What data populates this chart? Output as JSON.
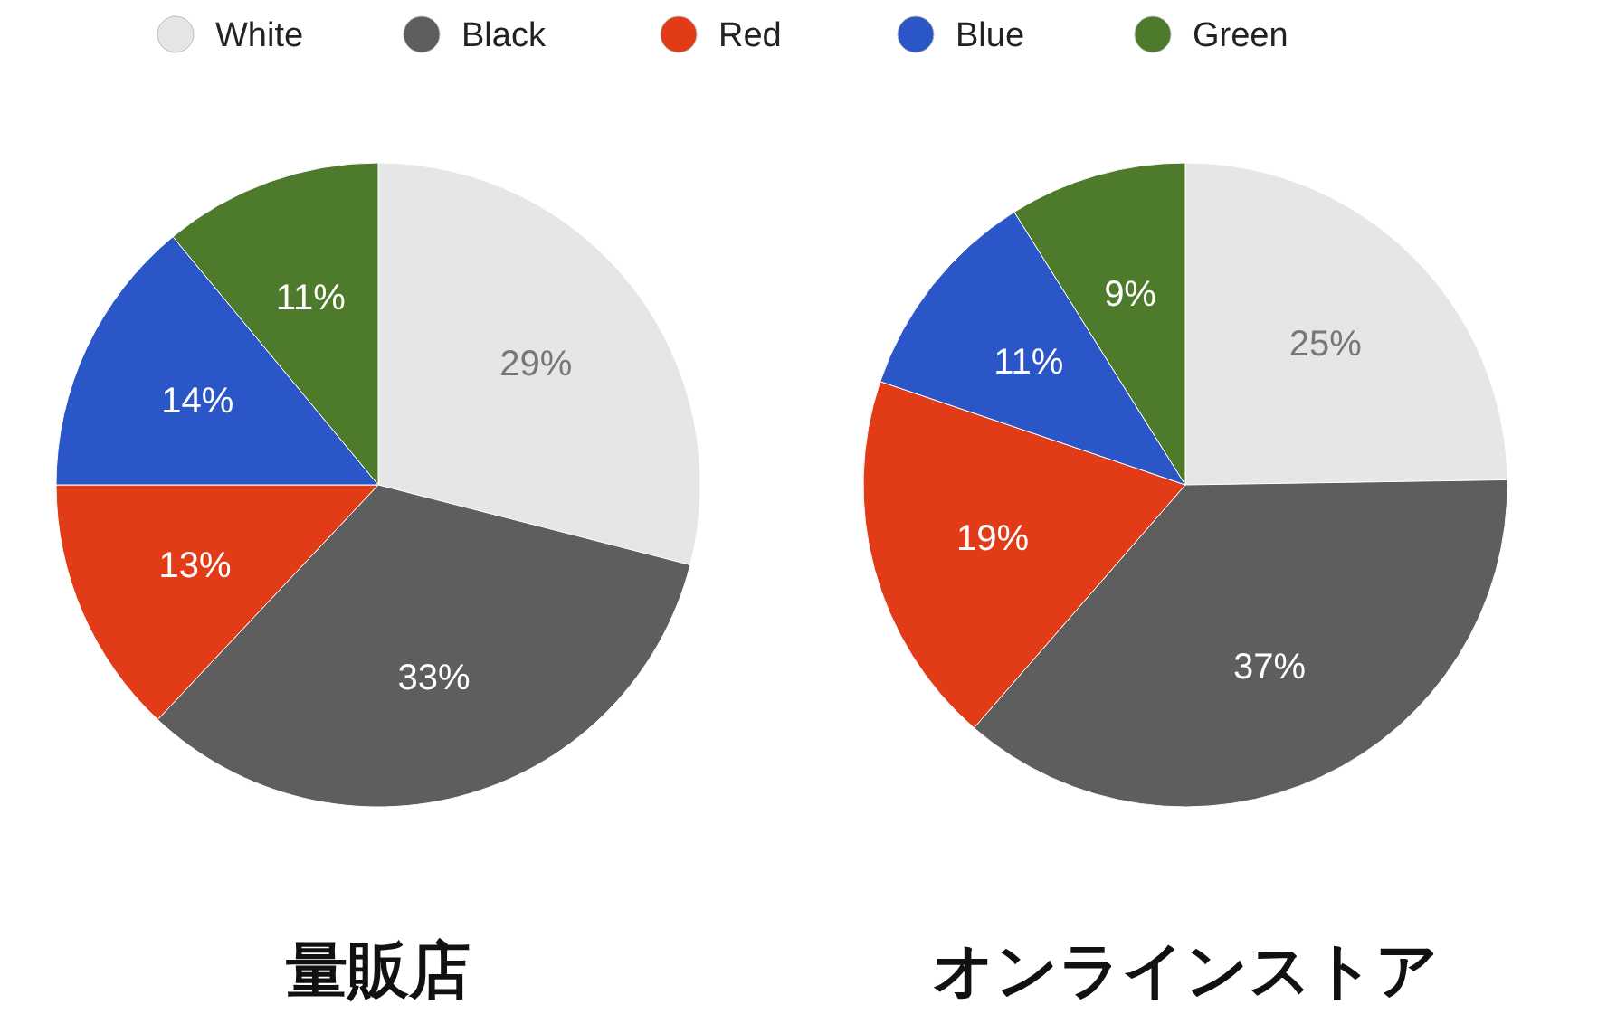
{
  "chart_data": [
    {
      "type": "pie",
      "title": "量販店",
      "categories": [
        "White",
        "Black",
        "Red",
        "Blue",
        "Green"
      ],
      "values": [
        29,
        33,
        13,
        14,
        11
      ],
      "value_labels": [
        "29%",
        "33%",
        "13%",
        "14%",
        "11%"
      ],
      "colors": [
        "#e6e6e6",
        "#5e5e5e",
        "#e23b18",
        "#2b56c8",
        "#4e7a2c"
      ],
      "legend": "top"
    },
    {
      "type": "pie",
      "title": "オンラインストア",
      "categories": [
        null,
        null,
        null,
        null,
        null
      ],
      "values": [
        25,
        37,
        19,
        11,
        9
      ],
      "value_labels": [
        "25%",
        "37%",
        "19%",
        "11%",
        "9%"
      ],
      "colors": [
        "#e6e6e6",
        "#5e5e5e",
        "#e23b18",
        "#2b56c8",
        "#4e7a2c"
      ]
    }
  ]
}
